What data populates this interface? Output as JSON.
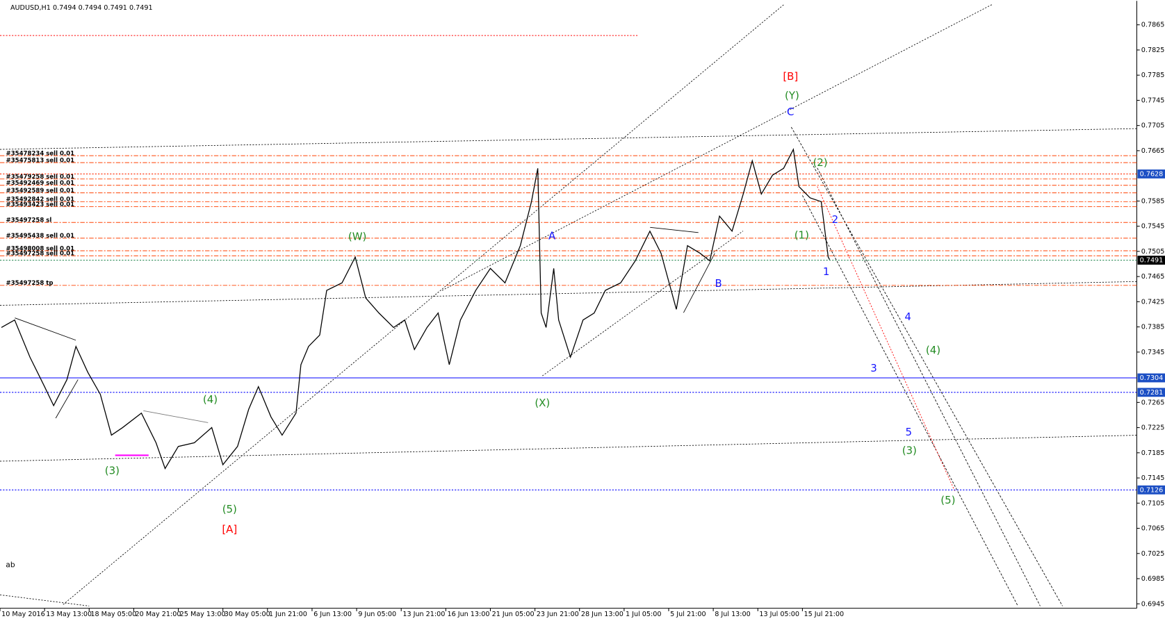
{
  "chart_data": {
    "type": "line",
    "title": "AUDUSD,H1  0.7494 0.7494 0.7491 0.7491",
    "color": "#000000",
    "x": [
      2,
      21,
      43,
      64,
      77,
      96,
      109,
      126,
      144,
      160,
      176,
      203,
      224,
      237,
      256,
      279,
      304,
      320,
      341,
      357,
      371,
      389,
      405,
      425,
      432,
      443,
      459,
      469,
      491,
      510,
      525,
      544,
      565,
      581,
      595,
      613,
      629,
      645,
      661,
      683,
      704,
      725,
      747,
      763,
      772,
      777,
      784,
      795,
      802,
      819,
      837,
      853,
      869,
      891,
      912,
      933,
      949,
      971,
      987,
      1005,
      1019,
      1033,
      1051,
      1067,
      1080,
      1093,
      1109,
      1125,
      1139,
      1147,
      1163,
      1179,
      1189,
      1191
    ],
    "values": [
      0.7384,
      0.7396,
      0.7337,
      0.729,
      0.726,
      0.7301,
      0.7354,
      0.7313,
      0.7278,
      0.7213,
      0.7225,
      0.7248,
      0.7201,
      0.716,
      0.7195,
      0.7201,
      0.7225,
      0.7166,
      0.7195,
      0.7254,
      0.729,
      0.7242,
      0.7213,
      0.7248,
      0.7325,
      0.7354,
      0.7372,
      0.7443,
      0.7455,
      0.7496,
      0.7431,
      0.7407,
      0.7384,
      0.7396,
      0.7349,
      0.7384,
      0.7407,
      0.7325,
      0.7396,
      0.7443,
      0.7478,
      0.7455,
      0.7514,
      0.7584,
      0.7637,
      0.7407,
      0.7384,
      0.7478,
      0.7396,
      0.7337,
      0.7396,
      0.7407,
      0.7443,
      0.7455,
      0.749,
      0.7537,
      0.7502,
      0.7413,
      0.7514,
      0.7502,
      0.749,
      0.7561,
      0.7537,
      0.7596,
      0.7649,
      0.7596,
      0.7626,
      0.7637,
      0.7667,
      0.7608,
      0.759,
      0.7584,
      0.7496,
      0.7492
    ],
    "xlim": [
      0,
      1632
    ],
    "xticks": [
      {
        "value": 0,
        "label": "10 May 2016"
      },
      {
        "value": 64,
        "label": "13 May 13:00"
      },
      {
        "value": 128,
        "label": "18 May 05:00"
      },
      {
        "value": 192,
        "label": "20 May 21:00"
      },
      {
        "value": 256,
        "label": "25 May 13:00"
      },
      {
        "value": 320,
        "label": "30 May 05:00"
      },
      {
        "value": 384,
        "label": "1 Jun 21:00"
      },
      {
        "value": 448,
        "label": "6 Jun 13:00"
      },
      {
        "value": 512,
        "label": "9 Jun 05:00"
      },
      {
        "value": 576,
        "label": "13 Jun 21:00"
      },
      {
        "value": 640,
        "label": "16 Jun 13:00"
      },
      {
        "value": 704,
        "label": "21 Jun 05:00"
      },
      {
        "value": 768,
        "label": "23 Jun 21:00"
      },
      {
        "value": 832,
        "label": "28 Jun 13:00"
      },
      {
        "value": 896,
        "label": "1 Jul 05:00"
      },
      {
        "value": 960,
        "label": "5 Jul 21:00"
      },
      {
        "value": 1024,
        "label": "8 Jul 13:00"
      },
      {
        "value": 1088,
        "label": "13 Jul 05:00"
      },
      {
        "value": 1152,
        "label": "15 Jul 21:00"
      }
    ],
    "ylim": [
      0.6938,
      0.7903
    ],
    "yticks": [
      0.7865,
      0.7825,
      0.7785,
      0.7745,
      0.7705,
      0.7665,
      0.7585,
      0.7545,
      0.7505,
      0.7465,
      0.7425,
      0.7385,
      0.7345,
      0.7265,
      0.7225,
      0.7185,
      0.7145,
      0.7105,
      0.7065,
      0.7025,
      0.6985,
      0.6945
    ],
    "levels": [
      {
        "value": 0.7628,
        "color": "#1c4fc4",
        "line": "#ff2a00"
      },
      {
        "value": 0.7491,
        "color": "#000000",
        "line": "#2e8b57"
      },
      {
        "value": 0.7304,
        "color": "#1c4fc4",
        "line": "#0000ff"
      },
      {
        "value": 0.7281,
        "color": "#1c4fc4",
        "line": "#0000ff"
      },
      {
        "value": 0.7126,
        "color": "#1c4fc4",
        "line": "#0000ff"
      }
    ],
    "stop_line": 0.7848,
    "orders": [
      {
        "label": "#35478234 sell 0.01",
        "value": 0.7657
      },
      {
        "label": "#35475813 sell 0.01",
        "value": 0.7646
      },
      {
        "label": "#35479258 sell 0.01",
        "value": 0.762
      },
      {
        "label": "#35492469 sell 0.01",
        "value": 0.761
      },
      {
        "label": "#35492589 sell 0.01",
        "value": 0.7598
      },
      {
        "label": "#35492842 sell 0.01",
        "value": 0.7584
      },
      {
        "label": "#35493423 sell 0.01",
        "value": 0.7576
      },
      {
        "label": "#35497258 sl",
        "value": 0.7551
      },
      {
        "label": "#35495438 sell 0.01",
        "value": 0.7526
      },
      {
        "label": "#35498008 sell 0.01",
        "value": 0.7506
      },
      {
        "label": "#35497258 sell 0.01",
        "value": 0.7498
      },
      {
        "label": "#35497258 tp",
        "value": 0.7451
      }
    ],
    "annotations": [
      {
        "text": "[B]",
        "color": "#ff0000"
      },
      {
        "text": "(Y)",
        "color": "#228b22"
      },
      {
        "text": "C",
        "color": "#1515ff"
      },
      {
        "text": "(2)",
        "color": "#228b22"
      },
      {
        "text": "2",
        "color": "#1515ff"
      },
      {
        "text": "(1)",
        "color": "#228b22"
      },
      {
        "text": "1",
        "color": "#1515ff"
      },
      {
        "text": "4",
        "color": "#1515ff"
      },
      {
        "text": "(4)",
        "color": "#228b22"
      },
      {
        "text": "3",
        "color": "#1515ff"
      },
      {
        "text": "5",
        "color": "#1515ff"
      },
      {
        "text": "(3)",
        "color": "#228b22"
      },
      {
        "text": "(5)",
        "color": "#228b22"
      },
      {
        "text": "(W)",
        "color": "#228b22"
      },
      {
        "text": "A",
        "color": "#1515ff"
      },
      {
        "text": "B",
        "color": "#1515ff"
      },
      {
        "text": "(X)",
        "color": "#228b22"
      },
      {
        "text": "(4)",
        "color": "#228b22"
      },
      {
        "text": "(3)",
        "color": "#228b22"
      },
      {
        "text": "(5)",
        "color": "#228b22"
      },
      {
        "text": "[A]",
        "color": "#ff0000"
      },
      {
        "text": "ab",
        "color": "#000000"
      }
    ]
  }
}
